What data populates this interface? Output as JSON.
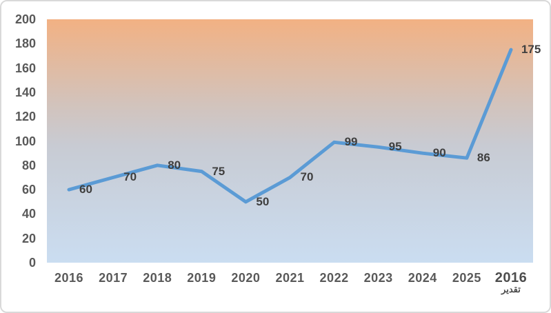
{
  "chart_data": {
    "type": "line",
    "title": "",
    "xlabel": "",
    "ylabel": "",
    "categories": [
      {
        "label": "2016",
        "sublabel": "",
        "emphasis": false
      },
      {
        "label": "2017",
        "sublabel": "",
        "emphasis": false
      },
      {
        "label": "2018",
        "sublabel": "",
        "emphasis": false
      },
      {
        "label": "2019",
        "sublabel": "",
        "emphasis": false
      },
      {
        "label": "2020",
        "sublabel": "",
        "emphasis": false
      },
      {
        "label": "2021",
        "sublabel": "",
        "emphasis": false
      },
      {
        "label": "2022",
        "sublabel": "",
        "emphasis": false
      },
      {
        "label": "2023",
        "sublabel": "",
        "emphasis": false
      },
      {
        "label": "2024",
        "sublabel": "",
        "emphasis": false
      },
      {
        "label": "2025",
        "sublabel": "",
        "emphasis": false
      },
      {
        "label": "2016",
        "sublabel": "تقدير",
        "emphasis": true
      }
    ],
    "values": [
      60,
      70,
      80,
      75,
      50,
      70,
      99,
      95,
      90,
      86,
      175
    ],
    "data_labels": [
      "60",
      "70",
      "80",
      "75",
      "50",
      "70",
      "99",
      "95",
      "90",
      "86",
      "175"
    ],
    "ylim": [
      0,
      200
    ],
    "yticks": [
      0,
      20,
      40,
      60,
      80,
      100,
      120,
      140,
      160,
      180,
      200
    ],
    "grid": false,
    "legend": false,
    "data_label_position": "right"
  },
  "colors": {
    "line": "#5B9BD5",
    "gradient_top": "#F2B183",
    "gradient_mid1": "#D2C3BC",
    "gradient_mid2": "#C8CBD3",
    "gradient_bottom": "#CADDF1",
    "axis_label": "#595959",
    "data_label": "#3F3F3F",
    "border": "#D9D9D9"
  }
}
